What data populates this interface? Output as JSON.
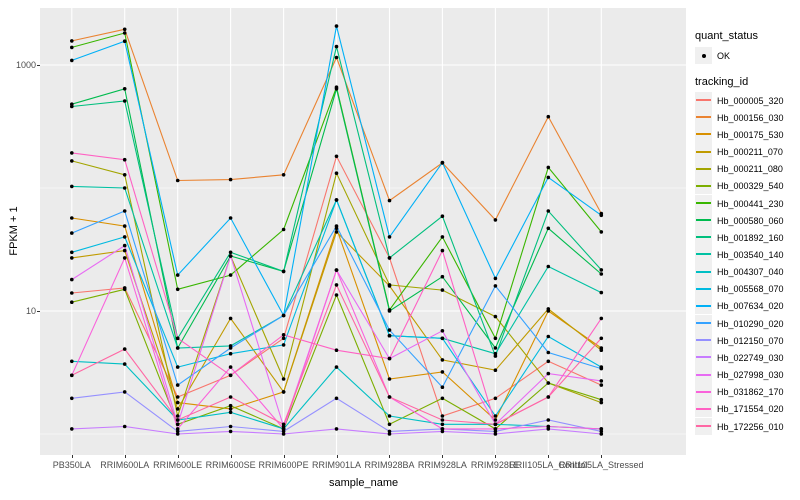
{
  "figure": {
    "kind": "ggplot-line-chart",
    "background": "#FFFFFF",
    "panel_background": "#EBEBEB",
    "grid_color": "#FFFFFF",
    "tick_label_color": "#4D4D4D",
    "point_color": "#000000"
  },
  "axes": {
    "x_title": "sample_name",
    "y_title": "FPKM + 1",
    "y_tick_labels": [
      "1000",
      "10"
    ]
  },
  "legend": {
    "quant_status_title": "quant_status",
    "quant_status_items": [
      {
        "label": "OK",
        "symbol": "point"
      }
    ],
    "tracking_id_title": "tracking_id"
  },
  "chart_data": {
    "type": "line",
    "title": "",
    "xlabel": "sample_name",
    "ylabel": "FPKM + 1",
    "y_scale": "log10",
    "ylim": [
      0.68,
      2900
    ],
    "y_major_breaks": [
      10,
      1000
    ],
    "y_minor_breaks": [
      1,
      100
    ],
    "grid": true,
    "legend_position": "right",
    "point_shape": "small-black-dot",
    "categories": [
      "PB350LA",
      "RRIM600LA",
      "RRIM600LE",
      "RRIM600SE",
      "RRIM600PE",
      "RRIM901LA",
      "RRIM928BA",
      "RRIM928LA",
      "RRIM928LE",
      "RRII105LA_Control",
      "RRII105LA_Stressed"
    ],
    "series": [
      {
        "name": "Hb_000005_320",
        "color": "#F8766D",
        "values": [
          14,
          15.4,
          2.0,
          3.0,
          6.0,
          181,
          27,
          1.4,
          1.95,
          3.9,
          2.5
        ]
      },
      {
        "name": "Hb_000156_030",
        "color": "#EA8331",
        "values": [
          1570,
          1950,
          115,
          117,
          128,
          1150,
          79,
          160,
          55,
          380,
          62
        ]
      },
      {
        "name": "Hb_000175_530",
        "color": "#D89000",
        "values": [
          57,
          49,
          1.8,
          1.6,
          2.2,
          47,
          2.8,
          3.2,
          1.3,
          10,
          5.0
        ]
      },
      {
        "name": "Hb_000211_070",
        "color": "#C09B00",
        "values": [
          27,
          31,
          1.6,
          8.7,
          2.2,
          44,
          16,
          4.0,
          3.3,
          10.4,
          4.8
        ]
      },
      {
        "name": "Hb_000211_080",
        "color": "#A3A500",
        "values": [
          166,
          128,
          1.4,
          28,
          2.8,
          132,
          16.3,
          14.8,
          9.0,
          2.6,
          1.8
        ]
      },
      {
        "name": "Hb_000329_540",
        "color": "#7CAE00",
        "values": [
          11.8,
          15,
          1.2,
          1.7,
          1.1,
          13.5,
          1.2,
          1.95,
          1.1,
          2.6,
          1.9
        ]
      },
      {
        "name": "Hb_000441_230",
        "color": "#39B600",
        "values": [
          1390,
          1820,
          15,
          19.6,
          46,
          660,
          10.2,
          40,
          6.0,
          147,
          44
        ]
      },
      {
        "name": "Hb_000580_060",
        "color": "#00BB4E",
        "values": [
          480,
          640,
          5.0,
          28,
          21,
          640,
          10,
          19,
          5.0,
          47,
          20
        ]
      },
      {
        "name": "Hb_001892_160",
        "color": "#00BF7D",
        "values": [
          460,
          510,
          6.0,
          30,
          21,
          1410,
          27,
          59,
          4.3,
          65,
          21.6
        ]
      },
      {
        "name": "Hb_003540_140",
        "color": "#00C1A3",
        "values": [
          103,
          100,
          5.0,
          5.2,
          9.2,
          80,
          6.3,
          6.0,
          4.5,
          23,
          14.1
        ]
      },
      {
        "name": "Hb_004307_040",
        "color": "#00BFC4",
        "values": [
          3.9,
          3.7,
          1.3,
          1.5,
          1.1,
          3.5,
          1.4,
          1.2,
          1.2,
          1.15,
          1.1
        ]
      },
      {
        "name": "Hb_005568_070",
        "color": "#00BAE0",
        "values": [
          30,
          40,
          3.5,
          4.5,
          5.3,
          80,
          6.3,
          6.0,
          1.4,
          6.2,
          3.5
        ]
      },
      {
        "name": "Hb_007634_020",
        "color": "#00B0F6",
        "values": [
          1090,
          1560,
          19.6,
          57,
          9.2,
          2070,
          40,
          161,
          18.4,
          122,
          60
        ]
      },
      {
        "name": "Hb_010290_020",
        "color": "#35A2FF",
        "values": [
          43,
          65,
          2.5,
          5.0,
          9.2,
          49,
          7.0,
          2.4,
          16,
          4.6,
          3.4
        ]
      },
      {
        "name": "Hb_012150_070",
        "color": "#9590FF",
        "values": [
          1.95,
          2.2,
          1.05,
          1.15,
          1.05,
          1.95,
          1.05,
          1.1,
          1.05,
          1.3,
          1.05
        ]
      },
      {
        "name": "Hb_022749_030",
        "color": "#C77CFF",
        "values": [
          1.1,
          1.15,
          1.0,
          1.05,
          1.0,
          1.1,
          1.0,
          1.05,
          1.0,
          1.1,
          1.0
        ]
      },
      {
        "name": "Hb_027998_030",
        "color": "#E76BF3",
        "values": [
          18,
          34,
          1.2,
          28,
          1.15,
          21.5,
          4.1,
          6.9,
          1.2,
          3.1,
          2.7
        ]
      },
      {
        "name": "Hb_031862_170",
        "color": "#FA62DB",
        "values": [
          3.0,
          27,
          1.1,
          3.5,
          1.1,
          21.5,
          2.0,
          1.1,
          1.1,
          1.15,
          1.1
        ]
      },
      {
        "name": "Hb_171554_020",
        "color": "#FF61C3",
        "values": [
          193,
          170,
          6.0,
          3.0,
          6.4,
          4.8,
          4.1,
          31,
          1.2,
          2.0,
          8.7
        ]
      },
      {
        "name": "Hb_172256_010",
        "color": "#FF67A4",
        "values": [
          3.0,
          4.9,
          1.3,
          2.0,
          1.2,
          16.3,
          2.0,
          1.3,
          1.2,
          2.0,
          6.0
        ]
      }
    ]
  }
}
